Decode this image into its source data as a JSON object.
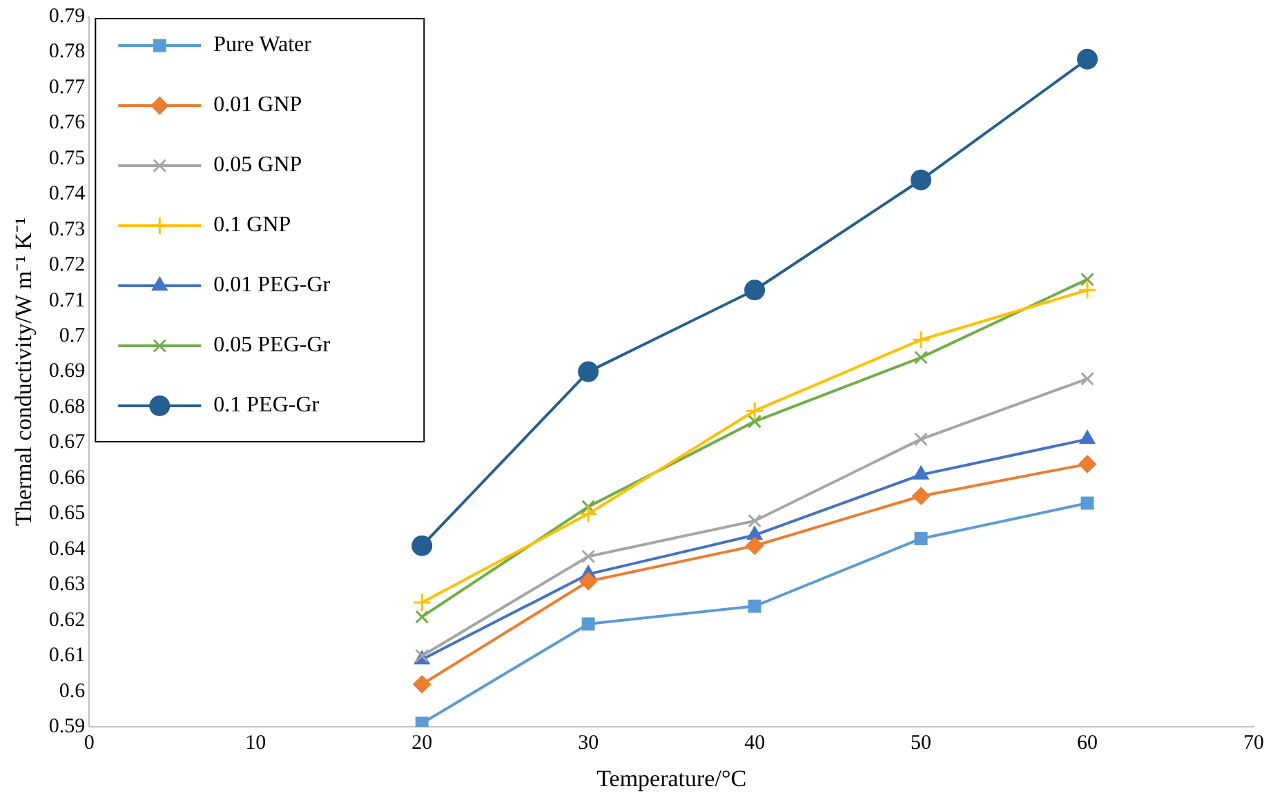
{
  "chart_data": {
    "type": "line",
    "xlabel": "Temperature/°C",
    "ylabel": "Thermal conductivity/W m⁻¹ K⁻¹",
    "x": [
      20,
      30,
      40,
      50,
      60
    ],
    "series": [
      {
        "name": "Pure Water",
        "color": "#5b9bd5",
        "marker": "square",
        "values": [
          0.591,
          0.619,
          0.624,
          0.643,
          0.653
        ]
      },
      {
        "name": "0.01 GNP",
        "color": "#ed7d31",
        "marker": "diamond",
        "values": [
          0.602,
          0.631,
          0.641,
          0.655,
          0.664
        ]
      },
      {
        "name": "0.05 GNP",
        "color": "#a5a5a5",
        "marker": "cross",
        "values": [
          0.61,
          0.638,
          0.648,
          0.671,
          0.688
        ]
      },
      {
        "name": "0.1 GNP",
        "color": "#ffc000",
        "marker": "plus",
        "values": [
          0.625,
          0.65,
          0.679,
          0.699,
          0.713
        ]
      },
      {
        "name": "0.01 PEG-Gr",
        "color": "#4472c4",
        "marker": "triangle",
        "values": [
          0.609,
          0.633,
          0.644,
          0.661,
          0.671
        ]
      },
      {
        "name": "0.05 PEG-Gr",
        "color": "#70ad47",
        "marker": "cross",
        "values": [
          0.621,
          0.652,
          0.676,
          0.694,
          0.716
        ]
      },
      {
        "name": "0.1 PEG-Gr",
        "color": "#255e91",
        "marker": "circle",
        "values": [
          0.641,
          0.69,
          0.713,
          0.744,
          0.778
        ]
      }
    ],
    "xlim": [
      0,
      70
    ],
    "xticks": [
      0,
      10,
      20,
      30,
      40,
      50,
      60,
      70
    ],
    "ylim": [
      0.59,
      0.79
    ],
    "yticks": [
      0.59,
      0.6,
      0.61,
      0.62,
      0.63,
      0.64,
      0.65,
      0.66,
      0.67,
      0.68,
      0.69,
      0.7,
      0.71,
      0.72,
      0.73,
      0.74,
      0.75,
      0.76,
      0.77,
      0.78,
      0.79
    ],
    "grid": false,
    "legend": "top left",
    "line_style": "solid"
  }
}
